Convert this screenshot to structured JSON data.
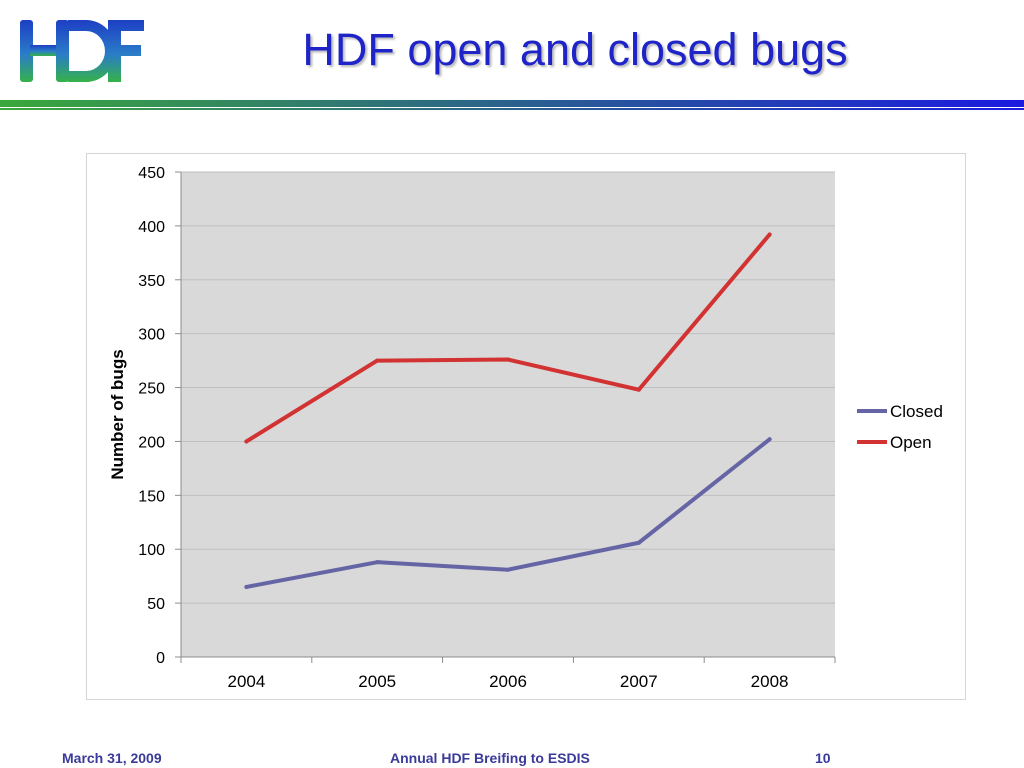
{
  "header": {
    "logo_text": "HDF",
    "title": "HDF open and closed bugs"
  },
  "colors": {
    "title": "#1f24c8",
    "bar_start": "#3aa83a",
    "bar_end": "#1a1ae0",
    "plot_bg": "#d9d9d9",
    "gridline": "#bfbfbf",
    "footer": "#3a3a9a"
  },
  "chart_data": {
    "type": "line",
    "title": "",
    "xlabel": "",
    "ylabel": "Number of bugs",
    "categories": [
      "2004",
      "2005",
      "2006",
      "2007",
      "2008"
    ],
    "ylim": [
      0,
      450
    ],
    "yticks": [
      "0",
      "50",
      "100",
      "150",
      "200",
      "250",
      "300",
      "350",
      "400",
      "450"
    ],
    "grid": true,
    "legend_position": "right",
    "series": [
      {
        "name": "Closed",
        "color": "#6565a5",
        "values": [
          65,
          88,
          81,
          106,
          202
        ]
      },
      {
        "name": "Open",
        "color": "#d23232",
        "values": [
          200,
          275,
          276,
          248,
          392
        ]
      }
    ]
  },
  "footer": {
    "date": "March 31, 2009",
    "center": "Annual HDF Breifing to ESDIS",
    "page": "10"
  }
}
